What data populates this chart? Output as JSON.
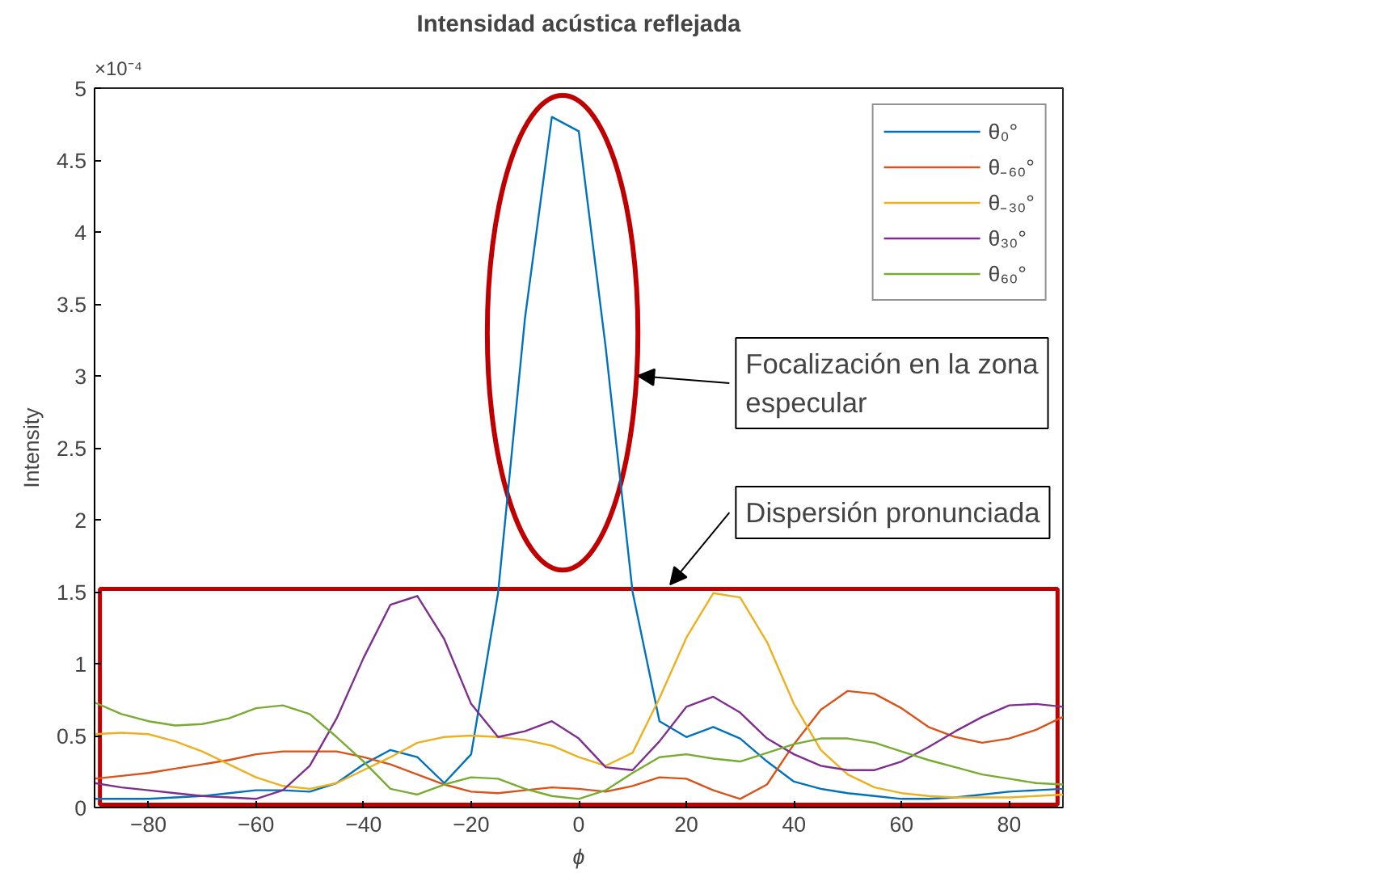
{
  "chart_data": {
    "type": "line",
    "title": "Intensidad acústica reflejada",
    "xlabel": "ϕ",
    "ylabel": "Intensity",
    "x": [
      -90,
      -85,
      -80,
      -75,
      -70,
      -65,
      -60,
      -55,
      -50,
      -45,
      -40,
      -35,
      -30,
      -25,
      -20,
      -15,
      -10,
      -5,
      0,
      5,
      10,
      15,
      20,
      25,
      30,
      35,
      40,
      45,
      50,
      55,
      60,
      65,
      70,
      75,
      80,
      85,
      90
    ],
    "series": [
      {
        "name": "θ₀°",
        "color": "#0072bd",
        "values": [
          0.06,
          0.06,
          0.06,
          0.07,
          0.08,
          0.1,
          0.12,
          0.12,
          0.11,
          0.17,
          0.3,
          0.4,
          0.35,
          0.17,
          0.37,
          1.49,
          3.4,
          4.8,
          4.7,
          3.2,
          1.5,
          0.6,
          0.49,
          0.56,
          0.48,
          0.32,
          0.18,
          0.13,
          0.1,
          0.08,
          0.06,
          0.06,
          0.07,
          0.09,
          0.11,
          0.12,
          0.13
        ]
      },
      {
        "name": "θ₋₆₀°",
        "color": "#d95319",
        "values": [
          0.2,
          0.22,
          0.24,
          0.27,
          0.3,
          0.33,
          0.37,
          0.39,
          0.39,
          0.39,
          0.35,
          0.3,
          0.23,
          0.16,
          0.11,
          0.1,
          0.12,
          0.14,
          0.13,
          0.11,
          0.15,
          0.21,
          0.2,
          0.12,
          0.06,
          0.16,
          0.44,
          0.68,
          0.81,
          0.79,
          0.69,
          0.56,
          0.49,
          0.45,
          0.48,
          0.54,
          0.63
        ]
      },
      {
        "name": "θ₋₃₀°",
        "color": "#edb120",
        "values": [
          0.51,
          0.52,
          0.51,
          0.46,
          0.39,
          0.3,
          0.21,
          0.15,
          0.13,
          0.17,
          0.26,
          0.35,
          0.45,
          0.49,
          0.5,
          0.49,
          0.47,
          0.43,
          0.35,
          0.29,
          0.38,
          0.76,
          1.18,
          1.49,
          1.46,
          1.15,
          0.72,
          0.4,
          0.23,
          0.14,
          0.1,
          0.08,
          0.07,
          0.07,
          0.07,
          0.08,
          0.09
        ]
      },
      {
        "name": "θ₃₀°",
        "color": "#7e2f8e",
        "values": [
          0.17,
          0.14,
          0.12,
          0.1,
          0.08,
          0.07,
          0.06,
          0.12,
          0.29,
          0.62,
          1.04,
          1.41,
          1.47,
          1.17,
          0.72,
          0.49,
          0.53,
          0.6,
          0.48,
          0.28,
          0.26,
          0.46,
          0.7,
          0.77,
          0.66,
          0.48,
          0.37,
          0.29,
          0.26,
          0.26,
          0.32,
          0.42,
          0.53,
          0.63,
          0.71,
          0.72,
          0.7
        ]
      },
      {
        "name": "θ₆₀°",
        "color": "#77ac30",
        "values": [
          0.73,
          0.65,
          0.6,
          0.57,
          0.58,
          0.62,
          0.69,
          0.71,
          0.65,
          0.49,
          0.32,
          0.13,
          0.09,
          0.16,
          0.21,
          0.2,
          0.13,
          0.08,
          0.06,
          0.12,
          0.24,
          0.35,
          0.37,
          0.34,
          0.32,
          0.38,
          0.44,
          0.48,
          0.48,
          0.45,
          0.39,
          0.33,
          0.28,
          0.23,
          0.2,
          0.17,
          0.16
        ]
      }
    ],
    "xlim": [
      -90,
      90
    ],
    "xticks": [
      -80,
      -60,
      -40,
      -20,
      0,
      20,
      40,
      60,
      80
    ],
    "ylim": [
      0,
      5
    ],
    "yticks": [
      0,
      0.5,
      1,
      1.5,
      2,
      2.5,
      3,
      3.5,
      4,
      4.5,
      5
    ],
    "grid": false,
    "legend": "top right",
    "annotations": [
      "×10⁻⁴",
      "Focalización en la zona especular",
      "Dispersión pronunciada"
    ]
  }
}
